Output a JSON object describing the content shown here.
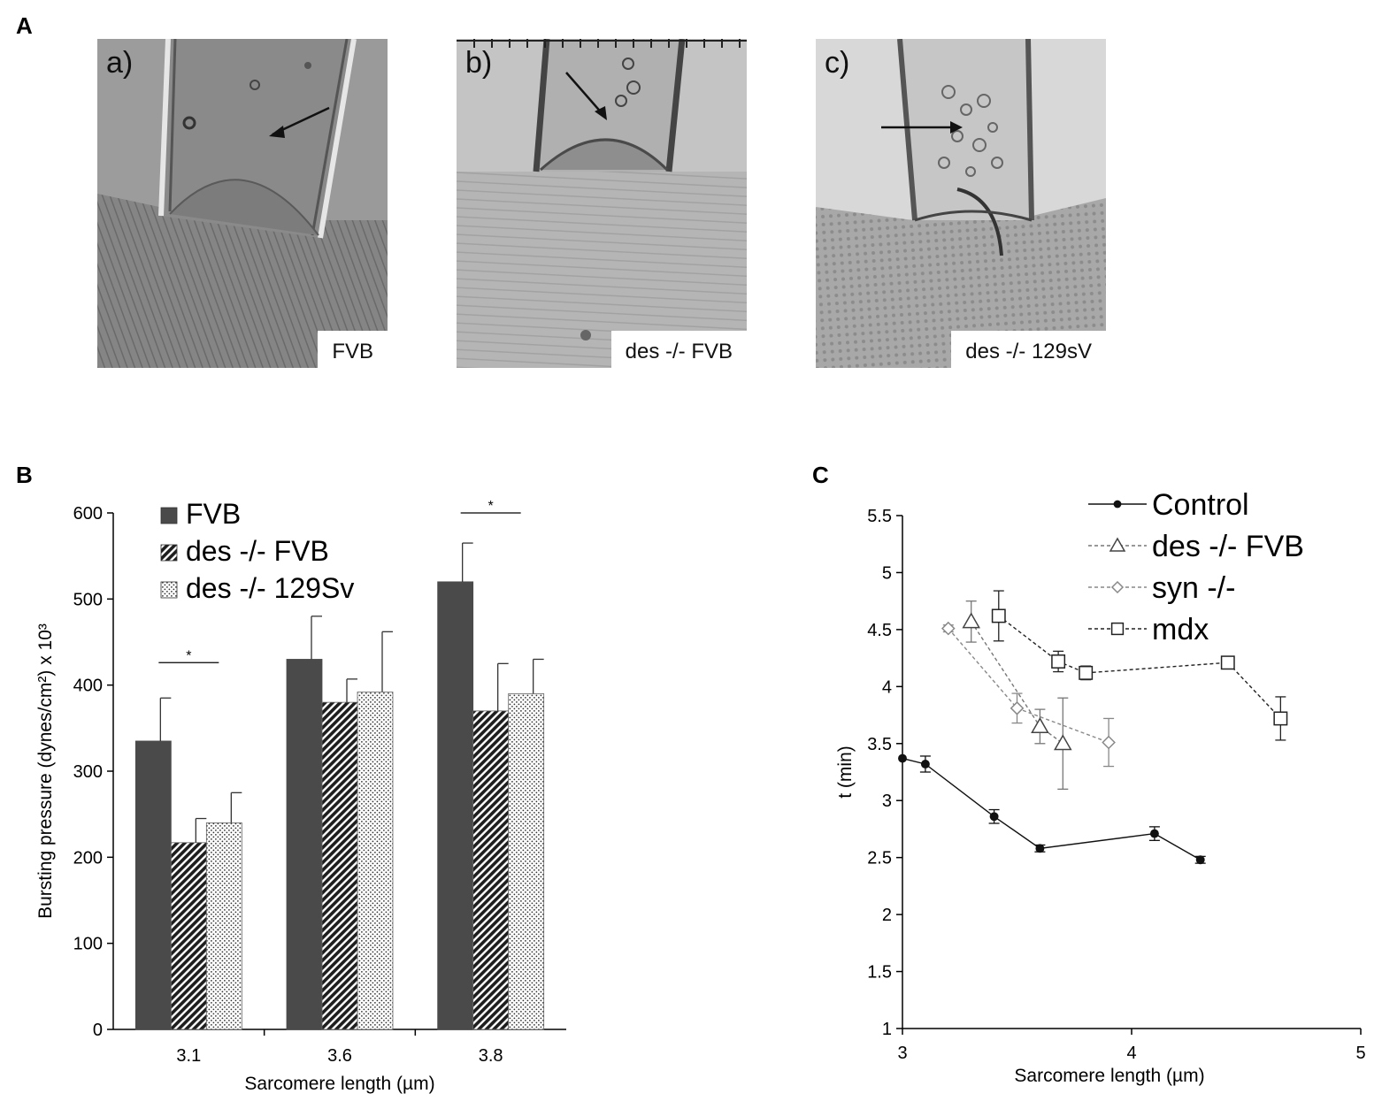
{
  "panels": {
    "A": {
      "letter": "A",
      "images": [
        {
          "label": "a)",
          "caption": "FVB"
        },
        {
          "label": "b)",
          "caption": "des -/- FVB"
        },
        {
          "label": "c)",
          "caption": "des -/- 129sV"
        }
      ]
    },
    "B": {
      "letter": "B"
    },
    "C": {
      "letter": "C"
    }
  },
  "chart_data": [
    {
      "type": "bar",
      "panel": "B",
      "title": "",
      "xlabel": "Sarcomere length (µm)",
      "ylabel": "Bursting pressure (dynes/cm²) x 10³",
      "ylim": [
        0,
        600
      ],
      "yticks": [
        "0",
        "100",
        "200",
        "300",
        "400",
        "500",
        "600"
      ],
      "categories": [
        "3.1",
        "3.6",
        "3.8"
      ],
      "series": [
        {
          "name": "FVB",
          "fill": "solid",
          "color": "#4a4a4a",
          "values": [
            335,
            430,
            520
          ],
          "errors": [
            50,
            50,
            45
          ]
        },
        {
          "name": "des -/- FVB",
          "fill": "hatched",
          "color": "#222222",
          "values": [
            217,
            380,
            370
          ],
          "errors": [
            28,
            27,
            55
          ]
        },
        {
          "name": "des -/- 129Sv",
          "fill": "dotted",
          "color": "#333333",
          "values": [
            240,
            392,
            390
          ],
          "errors": [
            35,
            70,
            40
          ]
        }
      ],
      "significance": [
        {
          "category": "3.1",
          "symbol": "*"
        },
        {
          "category": "3.8",
          "symbol": "*"
        }
      ],
      "legend_position": "top-left",
      "grid": false
    },
    {
      "type": "line",
      "panel": "C",
      "title": "",
      "xlabel": "Sarcomere length (µm)",
      "ylabel": "t (min)",
      "xlim": [
        3,
        5
      ],
      "ylim": [
        1,
        5.5
      ],
      "xticks": [
        "3",
        "4",
        "5"
      ],
      "yticks": [
        "1",
        "1.5",
        "2",
        "2.5",
        "3",
        "3.5",
        "4",
        "4.5",
        "5",
        "5.5"
      ],
      "series": [
        {
          "name": "Control",
          "marker": "circle-filled",
          "line": "solid",
          "color": "#111111",
          "x": [
            3.0,
            3.1,
            3.4,
            3.6,
            4.1,
            4.3
          ],
          "y": [
            3.37,
            3.32,
            2.86,
            2.58,
            2.71,
            2.48
          ],
          "errors": [
            0.0,
            0.07,
            0.06,
            0.03,
            0.06,
            0.03
          ]
        },
        {
          "name": "des -/- FVB",
          "marker": "triangle-open",
          "line": "dashed",
          "color": "#777777",
          "x": [
            3.3,
            3.6,
            3.7
          ],
          "y": [
            4.57,
            3.65,
            3.5
          ],
          "errors": [
            0.18,
            0.15,
            0.4
          ]
        },
        {
          "name": "syn -/-",
          "marker": "diamond-open",
          "line": "dashed",
          "color": "#888888",
          "x": [
            3.2,
            3.5,
            3.9
          ],
          "y": [
            4.51,
            3.81,
            3.51
          ],
          "errors": [
            0.03,
            0.13,
            0.21
          ]
        },
        {
          "name": "mdx",
          "marker": "square-open",
          "line": "dashed",
          "color": "#222222",
          "x": [
            3.42,
            3.68,
            3.8,
            4.42,
            4.65
          ],
          "y": [
            4.62,
            4.22,
            4.12,
            4.21,
            3.72
          ],
          "errors": [
            0.22,
            0.09,
            0.06,
            0.03,
            0.19
          ]
        }
      ],
      "legend_position": "top-right",
      "grid": false
    }
  ]
}
